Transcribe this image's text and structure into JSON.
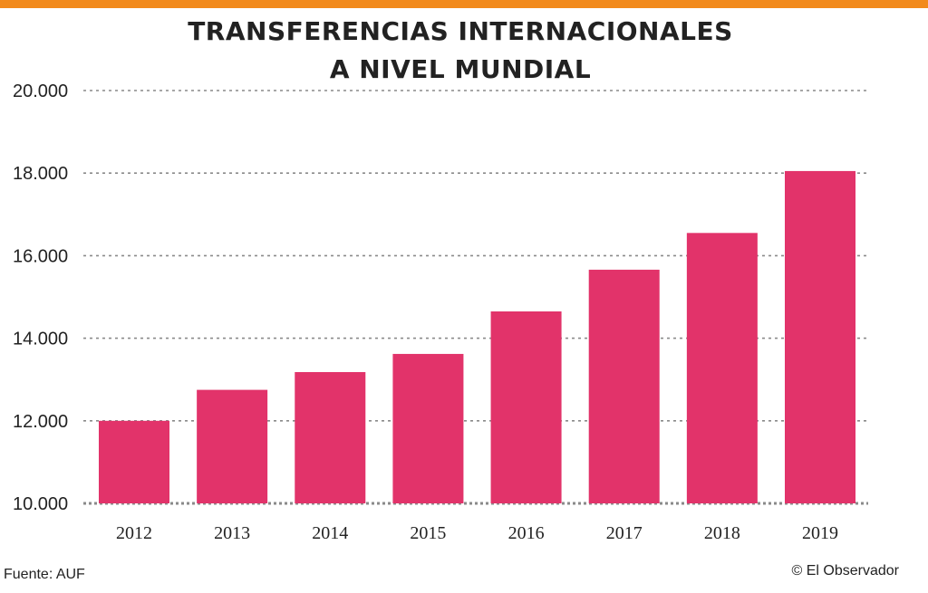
{
  "colors": {
    "bar": "#e2336a",
    "top_bar": "#f28a1c",
    "grid": "#8a8a8a",
    "text": "#222222"
  },
  "title_lines": [
    "TRANSFERENCIAS INTERNACIONALES",
    "A NIVEL MUNDIAL"
  ],
  "footer": {
    "source": "Fuente:  AUF",
    "credit": "© El Observador"
  },
  "chart_data": {
    "type": "bar",
    "title": "TRANSFERENCIAS INTERNACIONALES A NIVEL MUNDIAL",
    "categories": [
      "2012",
      "2013",
      "2014",
      "2015",
      "2016",
      "2017",
      "2018",
      "2019"
    ],
    "values": [
      12000,
      12750,
      13180,
      13620,
      14650,
      15660,
      16550,
      18050
    ],
    "ylim": [
      10000,
      20000
    ],
    "yticks": [
      10000,
      12000,
      14000,
      16000,
      18000,
      20000
    ],
    "ytick_labels": [
      "10.000",
      "12.000",
      "14.000",
      "16.000",
      "18.000",
      "20.000"
    ],
    "xlabel": "",
    "ylabel": "",
    "grid": true,
    "legend": "none"
  }
}
